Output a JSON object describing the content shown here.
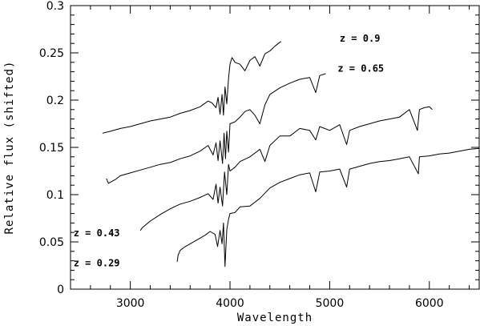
{
  "chart_data": {
    "type": "line",
    "title": "",
    "xlabel": "Wavelength",
    "ylabel": "Relative flux (shifted)",
    "xlim": [
      2400,
      6500
    ],
    "ylim": [
      0,
      0.3
    ],
    "x_ticks": [
      3000,
      4000,
      5000,
      6000
    ],
    "x_tick_labels": [
      "3000",
      "4000",
      "5000",
      "6000"
    ],
    "y_ticks": [
      0,
      0.05,
      0.1,
      0.15,
      0.2,
      0.25,
      0.3
    ],
    "y_tick_labels": [
      "0",
      "0.05",
      "0.1",
      "0.15",
      "0.2",
      "0.25",
      "0.3"
    ],
    "grid": false,
    "legend": "none",
    "annotations": [
      {
        "text": "z  =  0.9",
        "x": 5100,
        "y": 0.262
      },
      {
        "text": "z  =  0.65",
        "x": 5080,
        "y": 0.23
      },
      {
        "text": "z  =  0.43",
        "x": 2430,
        "y": 0.056
      },
      {
        "text": "z  =  0.29",
        "x": 2430,
        "y": 0.024
      }
    ],
    "series": [
      {
        "label": "z = 0.9",
        "x": [
          2720,
          2800,
          2900,
          3000,
          3100,
          3200,
          3300,
          3400,
          3500,
          3600,
          3700,
          3780,
          3820,
          3860,
          3880,
          3900,
          3920,
          3935,
          3950,
          3968,
          3985,
          4000,
          4020,
          4050,
          4100,
          4150,
          4200,
          4250,
          4300,
          4350,
          4400,
          4450,
          4510
        ],
        "y": [
          0.165,
          0.167,
          0.17,
          0.172,
          0.175,
          0.178,
          0.18,
          0.182,
          0.186,
          0.189,
          0.193,
          0.199,
          0.197,
          0.192,
          0.203,
          0.185,
          0.206,
          0.184,
          0.214,
          0.196,
          0.223,
          0.238,
          0.245,
          0.24,
          0.238,
          0.231,
          0.242,
          0.246,
          0.236,
          0.249,
          0.252,
          0.257,
          0.262
        ]
      },
      {
        "label": "z = 0.65",
        "x": [
          2760,
          2780,
          2850,
          2900,
          3000,
          3100,
          3200,
          3300,
          3400,
          3500,
          3600,
          3700,
          3780,
          3830,
          3860,
          3880,
          3900,
          3925,
          3940,
          3955,
          3968,
          3985,
          4000,
          4050,
          4100,
          4150,
          4200,
          4250,
          4300,
          4350,
          4400,
          4500,
          4600,
          4700,
          4800,
          4860,
          4900,
          4960
        ],
        "y": [
          0.117,
          0.112,
          0.116,
          0.12,
          0.123,
          0.126,
          0.129,
          0.132,
          0.134,
          0.138,
          0.141,
          0.146,
          0.152,
          0.142,
          0.155,
          0.136,
          0.157,
          0.133,
          0.165,
          0.138,
          0.167,
          0.145,
          0.175,
          0.177,
          0.182,
          0.188,
          0.19,
          0.184,
          0.175,
          0.195,
          0.206,
          0.213,
          0.218,
          0.222,
          0.224,
          0.208,
          0.226,
          0.228
        ]
      },
      {
        "label": "z = 0.43",
        "x": [
          3100,
          3120,
          3200,
          3300,
          3400,
          3500,
          3600,
          3700,
          3780,
          3830,
          3860,
          3880,
          3900,
          3925,
          3945,
          3968,
          3985,
          4000,
          4050,
          4100,
          4200,
          4300,
          4350,
          4400,
          4500,
          4600,
          4700,
          4800,
          4860,
          4900,
          5000,
          5100,
          5170,
          5200,
          5300,
          5400,
          5500,
          5600,
          5700,
          5800,
          5880,
          5900,
          5950,
          6000,
          6030
        ],
        "y": [
          0.062,
          0.065,
          0.072,
          0.079,
          0.085,
          0.09,
          0.093,
          0.097,
          0.101,
          0.095,
          0.111,
          0.091,
          0.108,
          0.088,
          0.124,
          0.1,
          0.132,
          0.125,
          0.129,
          0.135,
          0.14,
          0.148,
          0.135,
          0.152,
          0.162,
          0.162,
          0.17,
          0.168,
          0.158,
          0.172,
          0.168,
          0.174,
          0.153,
          0.168,
          0.172,
          0.175,
          0.178,
          0.18,
          0.182,
          0.19,
          0.168,
          0.19,
          0.192,
          0.193,
          0.19
        ]
      },
      {
        "label": "z = 0.29",
        "x": [
          3470,
          3480,
          3500,
          3550,
          3600,
          3650,
          3700,
          3750,
          3800,
          3850,
          3875,
          3900,
          3920,
          3935,
          3950,
          3968,
          3985,
          4000,
          4050,
          4100,
          4200,
          4300,
          4400,
          4500,
          4600,
          4700,
          4800,
          4860,
          4900,
          5000,
          5100,
          5170,
          5200,
          5300,
          5400,
          5500,
          5600,
          5700,
          5800,
          5890,
          5900,
          6000,
          6100,
          6200,
          6300,
          6400,
          6500
        ],
        "y": [
          0.029,
          0.036,
          0.041,
          0.045,
          0.048,
          0.051,
          0.054,
          0.057,
          0.061,
          0.058,
          0.045,
          0.062,
          0.048,
          0.07,
          0.024,
          0.063,
          0.074,
          0.08,
          0.081,
          0.087,
          0.088,
          0.096,
          0.107,
          0.113,
          0.117,
          0.121,
          0.123,
          0.103,
          0.124,
          0.125,
          0.127,
          0.108,
          0.127,
          0.13,
          0.133,
          0.135,
          0.136,
          0.138,
          0.14,
          0.122,
          0.14,
          0.141,
          0.143,
          0.144,
          0.146,
          0.148,
          0.149
        ]
      }
    ]
  }
}
